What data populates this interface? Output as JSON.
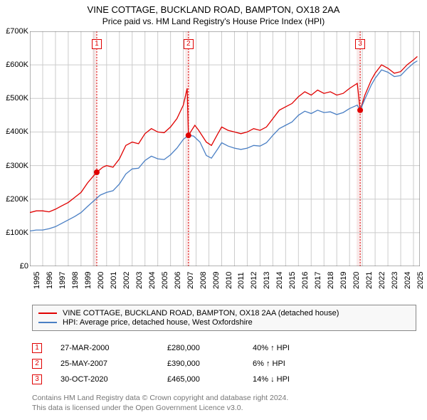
{
  "title_line1": "VINE COTTAGE, BUCKLAND ROAD, BAMPTON, OX18 2AA",
  "title_line2": "Price paid vs. HM Land Registry's House Price Index (HPI)",
  "title_fontsize": 13,
  "subtitle_fontsize": 12,
  "background_color": "#ffffff",
  "grid_color": "#cccccc",
  "axis_color": "#666666",
  "tick_fontsize": 11,
  "chart": {
    "type": "line",
    "x_range": [
      1995,
      2025.5
    ],
    "y_range": [
      0,
      700000
    ],
    "y_ticks": [
      0,
      100000,
      200000,
      300000,
      400000,
      500000,
      600000,
      700000
    ],
    "y_tick_labels": [
      "£0",
      "£100K",
      "£200K",
      "£300K",
      "£400K",
      "£500K",
      "£600K",
      "£700K"
    ],
    "x_ticks": [
      1995,
      1996,
      1997,
      1998,
      1999,
      2000,
      2001,
      2002,
      2003,
      2004,
      2005,
      2006,
      2007,
      2008,
      2009,
      2010,
      2011,
      2012,
      2013,
      2014,
      2015,
      2016,
      2017,
      2018,
      2019,
      2020,
      2021,
      2022,
      2023,
      2024,
      2025
    ],
    "vertical_bands": [
      {
        "x_start": 1999.9,
        "x_end": 2000.25,
        "color": "#f9e9e9"
      },
      {
        "x_start": 2007.15,
        "x_end": 2007.5,
        "color": "#f9e9e9"
      },
      {
        "x_start": 2020.55,
        "x_end": 2020.9,
        "color": "#f9e9e9"
      }
    ],
    "dashed_vlines": [
      {
        "x": 2000.23,
        "color": "#e00000"
      },
      {
        "x": 2007.4,
        "color": "#e00000"
      },
      {
        "x": 2020.83,
        "color": "#e00000"
      }
    ],
    "series": [
      {
        "name": "price_paid",
        "color": "#e00000",
        "width": 1.3,
        "points": [
          [
            1995,
            160000
          ],
          [
            1995.5,
            165000
          ],
          [
            1996,
            165000
          ],
          [
            1996.5,
            162000
          ],
          [
            1997,
            170000
          ],
          [
            1997.5,
            180000
          ],
          [
            1998,
            190000
          ],
          [
            1998.5,
            205000
          ],
          [
            1999,
            220000
          ],
          [
            1999.5,
            248000
          ],
          [
            2000,
            270000
          ],
          [
            2000.23,
            280000
          ],
          [
            2000.7,
            295000
          ],
          [
            2001,
            300000
          ],
          [
            2001.5,
            295000
          ],
          [
            2002,
            320000
          ],
          [
            2002.5,
            360000
          ],
          [
            2003,
            370000
          ],
          [
            2003.5,
            365000
          ],
          [
            2004,
            395000
          ],
          [
            2004.5,
            410000
          ],
          [
            2005,
            400000
          ],
          [
            2005.5,
            398000
          ],
          [
            2006,
            415000
          ],
          [
            2006.5,
            440000
          ],
          [
            2007,
            480000
          ],
          [
            2007.3,
            530000
          ],
          [
            2007.4,
            390000
          ],
          [
            2007.9,
            420000
          ],
          [
            2008.2,
            405000
          ],
          [
            2008.8,
            370000
          ],
          [
            2009.2,
            360000
          ],
          [
            2009.7,
            395000
          ],
          [
            2010,
            415000
          ],
          [
            2010.5,
            405000
          ],
          [
            2011,
            400000
          ],
          [
            2011.5,
            395000
          ],
          [
            2012,
            400000
          ],
          [
            2012.5,
            410000
          ],
          [
            2013,
            405000
          ],
          [
            2013.5,
            415000
          ],
          [
            2014,
            440000
          ],
          [
            2014.5,
            465000
          ],
          [
            2015,
            475000
          ],
          [
            2015.5,
            485000
          ],
          [
            2016,
            505000
          ],
          [
            2016.5,
            520000
          ],
          [
            2017,
            510000
          ],
          [
            2017.5,
            525000
          ],
          [
            2018,
            515000
          ],
          [
            2018.5,
            520000
          ],
          [
            2019,
            510000
          ],
          [
            2019.5,
            515000
          ],
          [
            2020,
            530000
          ],
          [
            2020.6,
            545000
          ],
          [
            2020.83,
            465000
          ],
          [
            2021.2,
            510000
          ],
          [
            2021.7,
            555000
          ],
          [
            2022,
            575000
          ],
          [
            2022.5,
            600000
          ],
          [
            2023,
            590000
          ],
          [
            2023.5,
            575000
          ],
          [
            2024,
            580000
          ],
          [
            2024.5,
            600000
          ],
          [
            2025,
            615000
          ],
          [
            2025.3,
            625000
          ]
        ]
      },
      {
        "name": "hpi",
        "color": "#4a7fc4",
        "width": 1.3,
        "points": [
          [
            1995,
            105000
          ],
          [
            1995.5,
            108000
          ],
          [
            1996,
            108000
          ],
          [
            1996.5,
            112000
          ],
          [
            1997,
            118000
          ],
          [
            1997.5,
            128000
          ],
          [
            1998,
            138000
          ],
          [
            1998.5,
            148000
          ],
          [
            1999,
            160000
          ],
          [
            1999.5,
            178000
          ],
          [
            2000,
            195000
          ],
          [
            2000.5,
            212000
          ],
          [
            2001,
            220000
          ],
          [
            2001.5,
            225000
          ],
          [
            2002,
            245000
          ],
          [
            2002.5,
            275000
          ],
          [
            2003,
            290000
          ],
          [
            2003.5,
            292000
          ],
          [
            2004,
            315000
          ],
          [
            2004.5,
            328000
          ],
          [
            2005,
            320000
          ],
          [
            2005.5,
            318000
          ],
          [
            2006,
            332000
          ],
          [
            2006.5,
            352000
          ],
          [
            2007,
            378000
          ],
          [
            2007.4,
            390000
          ],
          [
            2007.8,
            388000
          ],
          [
            2008.3,
            370000
          ],
          [
            2008.8,
            330000
          ],
          [
            2009.2,
            322000
          ],
          [
            2009.7,
            350000
          ],
          [
            2010,
            368000
          ],
          [
            2010.5,
            358000
          ],
          [
            2011,
            352000
          ],
          [
            2011.5,
            348000
          ],
          [
            2012,
            352000
          ],
          [
            2012.5,
            360000
          ],
          [
            2013,
            358000
          ],
          [
            2013.5,
            368000
          ],
          [
            2014,
            390000
          ],
          [
            2014.5,
            410000
          ],
          [
            2015,
            420000
          ],
          [
            2015.5,
            430000
          ],
          [
            2016,
            450000
          ],
          [
            2016.5,
            462000
          ],
          [
            2017,
            455000
          ],
          [
            2017.5,
            465000
          ],
          [
            2018,
            458000
          ],
          [
            2018.5,
            460000
          ],
          [
            2019,
            452000
          ],
          [
            2019.5,
            458000
          ],
          [
            2020,
            470000
          ],
          [
            2020.6,
            480000
          ],
          [
            2020.83,
            465000
          ],
          [
            2021.2,
            498000
          ],
          [
            2021.7,
            540000
          ],
          [
            2022,
            560000
          ],
          [
            2022.5,
            585000
          ],
          [
            2023,
            578000
          ],
          [
            2023.5,
            565000
          ],
          [
            2024,
            568000
          ],
          [
            2024.5,
            588000
          ],
          [
            2025,
            605000
          ],
          [
            2025.3,
            612000
          ]
        ]
      }
    ],
    "sale_markers": [
      {
        "idx": "1",
        "x": 2000.23,
        "y": 280000,
        "color": "#e00000"
      },
      {
        "idx": "2",
        "x": 2007.4,
        "y": 390000,
        "color": "#e00000"
      },
      {
        "idx": "3",
        "x": 2020.83,
        "y": 465000,
        "color": "#e00000"
      }
    ],
    "marker_box_top_offset": 55,
    "dot_radius": 4
  },
  "legend": {
    "items": [
      {
        "color": "#e00000",
        "label": "VINE COTTAGE, BUCKLAND ROAD, BAMPTON, OX18 2AA (detached house)"
      },
      {
        "color": "#4a7fc4",
        "label": "HPI: Average price, detached house, West Oxfordshire"
      }
    ]
  },
  "sales_table": [
    {
      "idx": "1",
      "date": "27-MAR-2000",
      "price": "£280,000",
      "pct": "40% ↑ HPI"
    },
    {
      "idx": "2",
      "date": "25-MAY-2007",
      "price": "£390,000",
      "pct": "6% ↑ HPI"
    },
    {
      "idx": "3",
      "date": "30-OCT-2020",
      "price": "£465,000",
      "pct": "14% ↓ HPI"
    }
  ],
  "footer_line1": "Contains HM Land Registry data © Crown copyright and database right 2024.",
  "footer_line2": "This data is licensed under the Open Government Licence v3.0."
}
